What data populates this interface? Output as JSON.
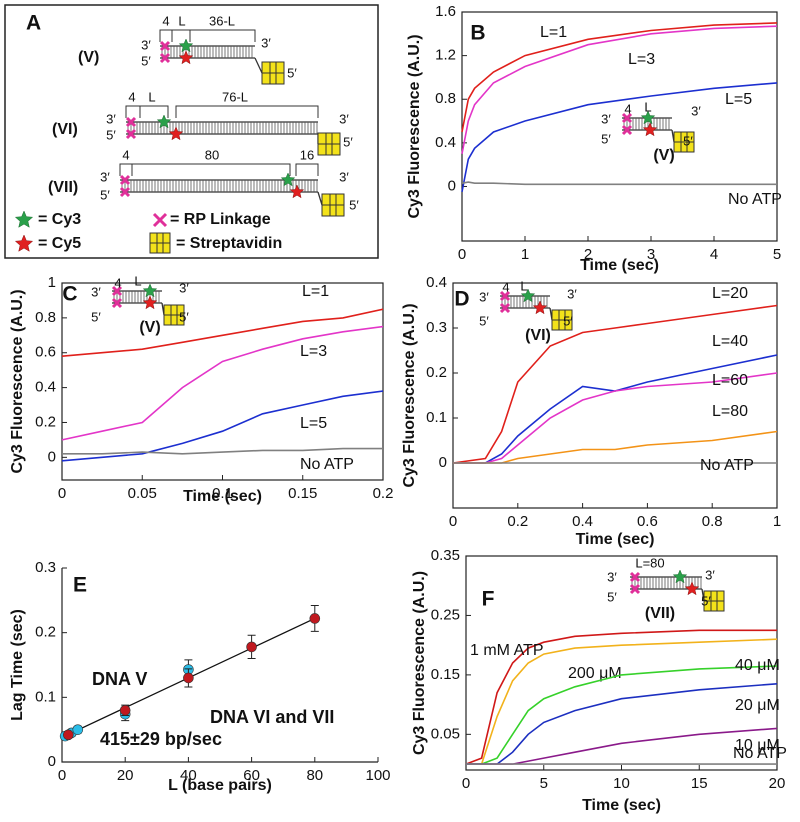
{
  "panel_a": {
    "label": "A",
    "constructs": [
      {
        "name": "(V)",
        "segments": [
          "4",
          "L",
          "36-L"
        ],
        "ends": [
          "3′",
          "5′",
          "3′",
          "5′"
        ]
      },
      {
        "name": "(VI)",
        "segments": [
          "4",
          "L",
          "76-L"
        ],
        "ends": [
          "3′",
          "5′",
          "3′",
          "5′"
        ]
      },
      {
        "name": "(VII)",
        "segments": [
          "4",
          "80",
          "16"
        ],
        "ends": [
          "3′",
          "5′",
          "3′",
          "5′"
        ]
      }
    ],
    "legend": [
      "= Cy3",
      "= Cy5",
      "= RP Linkage",
      "= Streptavidin"
    ]
  },
  "chart_data": [
    {
      "type": "line",
      "panel": "B",
      "xlabel": "Time (sec)",
      "ylabel": "Cy3 Fluorescence (A.U.)",
      "x": [
        0,
        0.1,
        0.2,
        0.5,
        1,
        2,
        3,
        4,
        5
      ],
      "series": [
        {
          "name": "L=1",
          "color": "#e0201b",
          "values": [
            0.5,
            0.8,
            0.9,
            1.05,
            1.2,
            1.35,
            1.43,
            1.48,
            1.5
          ]
        },
        {
          "name": "L=3",
          "color": "#e335c8",
          "values": [
            0.3,
            0.6,
            0.75,
            0.95,
            1.1,
            1.3,
            1.4,
            1.45,
            1.47
          ]
        },
        {
          "name": "L=5",
          "color": "#1c2fd0",
          "values": [
            -0.05,
            0.25,
            0.35,
            0.5,
            0.6,
            0.75,
            0.83,
            0.9,
            0.95
          ]
        },
        {
          "name": "No ATP",
          "color": "#808080",
          "values": [
            0.03,
            0.04,
            0.03,
            0.03,
            0.02,
            0.02,
            0.02,
            0.02,
            0.02
          ]
        }
      ],
      "xlim": [
        0,
        5
      ],
      "ylim": [
        -0.5,
        1.6
      ],
      "xticks": [
        0,
        1,
        2,
        3,
        4,
        5
      ],
      "yticks": [
        0,
        0.4,
        0.8,
        1.2,
        1.6
      ],
      "inset": {
        "labels": [
          "3′",
          "5′",
          "4",
          "L",
          "3′",
          "5′",
          "(V)"
        ]
      }
    },
    {
      "type": "line",
      "panel": "C",
      "xlabel": "Time (sec)",
      "ylabel": "Cy3 Fluorescence (A.U.)",
      "x": [
        0,
        0.025,
        0.05,
        0.075,
        0.1,
        0.125,
        0.15,
        0.175,
        0.2
      ],
      "series": [
        {
          "name": "L=1",
          "color": "#e0201b",
          "values": [
            0.58,
            0.6,
            0.62,
            0.66,
            0.7,
            0.74,
            0.78,
            0.8,
            0.85
          ]
        },
        {
          "name": "L=3",
          "color": "#e335c8",
          "values": [
            0.1,
            0.15,
            0.2,
            0.4,
            0.55,
            0.62,
            0.68,
            0.72,
            0.75
          ]
        },
        {
          "name": "L=5",
          "color": "#1c2fd0",
          "values": [
            -0.02,
            0,
            0.02,
            0.08,
            0.15,
            0.25,
            0.3,
            0.35,
            0.38
          ]
        },
        {
          "name": "No ATP",
          "color": "#808080",
          "values": [
            0.02,
            0.02,
            0.03,
            0.02,
            0.03,
            0.04,
            0.04,
            0.05,
            0.05
          ]
        }
      ],
      "xlim": [
        0,
        0.2
      ],
      "ylim": [
        -0.13,
        1
      ],
      "xticks": [
        0,
        0.05,
        0.1,
        0.15,
        0.2
      ],
      "yticks": [
        0,
        0.2,
        0.4,
        0.6,
        0.8,
        1
      ],
      "inset": {
        "labels": [
          "3′",
          "5′",
          "4",
          "L",
          "3′",
          "5′",
          "(V)"
        ]
      }
    },
    {
      "type": "line",
      "panel": "D",
      "xlabel": "Time (sec)",
      "ylabel": "Cy3 Fluorescence (A.U.)",
      "x": [
        0,
        0.1,
        0.15,
        0.2,
        0.3,
        0.4,
        0.5,
        0.6,
        0.8,
        1
      ],
      "series": [
        {
          "name": "L=20",
          "color": "#e0201b",
          "values": [
            0,
            0.01,
            0.07,
            0.18,
            0.26,
            0.29,
            0.3,
            0.31,
            0.33,
            0.35
          ]
        },
        {
          "name": "L=40",
          "color": "#1c2fd0",
          "values": [
            0,
            0,
            0.02,
            0.06,
            0.12,
            0.17,
            0.16,
            0.18,
            0.21,
            0.24
          ]
        },
        {
          "name": "L=60",
          "color": "#e335c8",
          "values": [
            0,
            0,
            0.01,
            0.04,
            0.1,
            0.14,
            0.16,
            0.17,
            0.18,
            0.2
          ]
        },
        {
          "name": "L=80",
          "color": "#f39317",
          "values": [
            0,
            0,
            0,
            0.01,
            0.02,
            0.03,
            0.03,
            0.04,
            0.05,
            0.07
          ]
        },
        {
          "name": "No ATP",
          "color": "#808080",
          "values": [
            0,
            0,
            0,
            0,
            0,
            0,
            0,
            0,
            0,
            0
          ]
        }
      ],
      "xlim": [
        0,
        1
      ],
      "ylim": [
        -0.1,
        0.4
      ],
      "xticks": [
        0,
        0.2,
        0.4,
        0.6,
        0.8,
        1
      ],
      "yticks": [
        0,
        0.1,
        0.2,
        0.3,
        0.4
      ],
      "inset": {
        "labels": [
          "3′",
          "5′",
          "4",
          "L",
          "3′",
          "5′",
          "(VI)"
        ]
      }
    },
    {
      "type": "scatter",
      "panel": "E",
      "xlabel": "L (base pairs)",
      "ylabel": "Lag Time (sec)",
      "series": [
        {
          "name": "DNA V",
          "color": "#2bbde8",
          "x": [
            1,
            3,
            5,
            20,
            40
          ],
          "values": [
            0.04,
            0.045,
            0.05,
            0.074,
            0.143
          ],
          "errors": [
            0.005,
            0.005,
            0.005,
            0.01,
            0.015
          ]
        },
        {
          "name": "DNA VI and VII",
          "color": "#c0191f",
          "x": [
            2,
            20,
            40,
            60,
            80
          ],
          "values": [
            0.042,
            0.08,
            0.13,
            0.178,
            0.222
          ],
          "errors": [
            0.003,
            0.008,
            0.014,
            0.018,
            0.02
          ]
        }
      ],
      "fit": {
        "x": [
          0,
          80
        ],
        "values": [
          0.038,
          0.222
        ]
      },
      "annotation": "415±29 bp/sec",
      "xlim": [
        0,
        100
      ],
      "ylim": [
        0,
        0.3
      ],
      "xticks": [
        0,
        20,
        40,
        60,
        80,
        100
      ],
      "yticks": [
        0,
        0.1,
        0.2,
        0.3
      ]
    },
    {
      "type": "line",
      "panel": "F",
      "xlabel": "Time (sec)",
      "ylabel": "Cy3 Fluorescence (A.U.)",
      "x": [
        0,
        1,
        2,
        3,
        4,
        5,
        7,
        10,
        15,
        20
      ],
      "series": [
        {
          "name": "1 mM ATP",
          "color": "#d01818",
          "values": [
            0,
            0.01,
            0.12,
            0.17,
            0.195,
            0.205,
            0.215,
            0.22,
            0.225,
            0.225
          ]
        },
        {
          "name": "200 μM",
          "color": "#f2b21b",
          "values": [
            0,
            0,
            0.08,
            0.14,
            0.17,
            0.185,
            0.195,
            0.2,
            0.205,
            0.21
          ]
        },
        {
          "name": "40 μM",
          "color": "#36d12a",
          "values": [
            0,
            0,
            0.01,
            0.05,
            0.09,
            0.11,
            0.13,
            0.15,
            0.16,
            0.165
          ]
        },
        {
          "name": "20 μM",
          "color": "#1c2fc0",
          "values": [
            0,
            0,
            0,
            0.02,
            0.05,
            0.07,
            0.09,
            0.11,
            0.125,
            0.135
          ]
        },
        {
          "name": "10 μM",
          "color": "#8a1a8a",
          "values": [
            0,
            0,
            0,
            0,
            0.005,
            0.01,
            0.02,
            0.035,
            0.05,
            0.06
          ]
        },
        {
          "name": "No ATP",
          "color": "#808080",
          "values": [
            0,
            0,
            0,
            0,
            0,
            0,
            0,
            0,
            0,
            0
          ]
        }
      ],
      "xlim": [
        0,
        20
      ],
      "ylim": [
        -0.01,
        0.35
      ],
      "xticks": [
        0,
        5,
        10,
        15,
        20
      ],
      "yticks": [
        0.05,
        0.15,
        0.25,
        0.35
      ],
      "inset": {
        "labels": [
          "3′",
          "5′",
          "L=80",
          "3′",
          "5′",
          "(VII)"
        ]
      }
    }
  ]
}
